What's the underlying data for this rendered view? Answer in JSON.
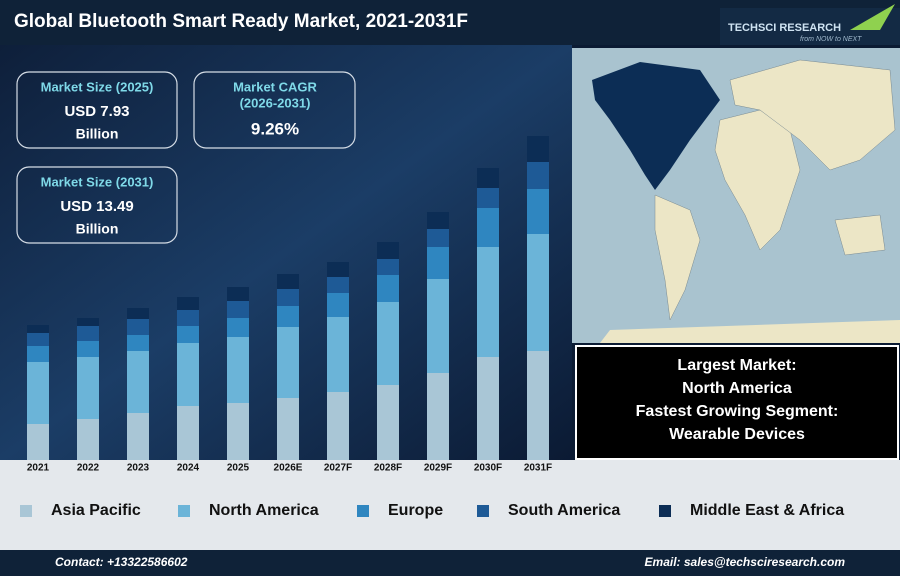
{
  "header": {
    "title": "Global Bluetooth Smart Ready Market, 2021-2031F",
    "logo": "TECHSCI RESEARCH",
    "tagline": "from NOW to NEXT"
  },
  "stats": [
    {
      "label": "Market Size (2025)",
      "value": "USD 7.93",
      "unit": "Billion"
    },
    {
      "label": "Market CAGR",
      "sublabel": "(2026-2031)",
      "value": "9.26%"
    },
    {
      "label": "Market Size (2031)",
      "value": "USD 13.49",
      "unit": "Billion"
    }
  ],
  "highlights": {
    "lines": [
      "Largest Market:",
      "North America",
      "Fastest Growing Segment:",
      "Wearable Devices"
    ]
  },
  "chart_data": {
    "type": "stacked_bar",
    "categories": [
      "2021",
      "2022",
      "2023",
      "2024",
      "2025",
      "2026E",
      "2027F",
      "2028F",
      "2029F",
      "2030F",
      "2031F"
    ],
    "series": [
      {
        "name": "Asia Pacific",
        "color": "#a9c6d6",
        "values": [
          36,
          41,
          47,
          54,
          57,
          62,
          68,
          75,
          87,
          103,
          109
        ]
      },
      {
        "name": "North America",
        "color": "#6bb4d8",
        "values": [
          62,
          62,
          62,
          63,
          66,
          71,
          75,
          83,
          94,
          110,
          117
        ]
      },
      {
        "name": "Europe",
        "color": "#2f86c0",
        "values": [
          16,
          16,
          16,
          17,
          19,
          21,
          24,
          27,
          32,
          39,
          45
        ]
      },
      {
        "name": "South America",
        "color": "#1e5a96",
        "values": [
          13,
          15,
          16,
          16,
          17,
          17,
          16,
          16,
          18,
          20,
          27
        ]
      },
      {
        "name": "Middle East & Africa",
        "color": "#0c2d55",
        "values": [
          8,
          8,
          11,
          13,
          14,
          15,
          15,
          17,
          17,
          20,
          26
        ]
      }
    ]
  },
  "footer": {
    "contact": "Contact: +13322586602",
    "email": "Email: sales@techsciresearch.com"
  }
}
